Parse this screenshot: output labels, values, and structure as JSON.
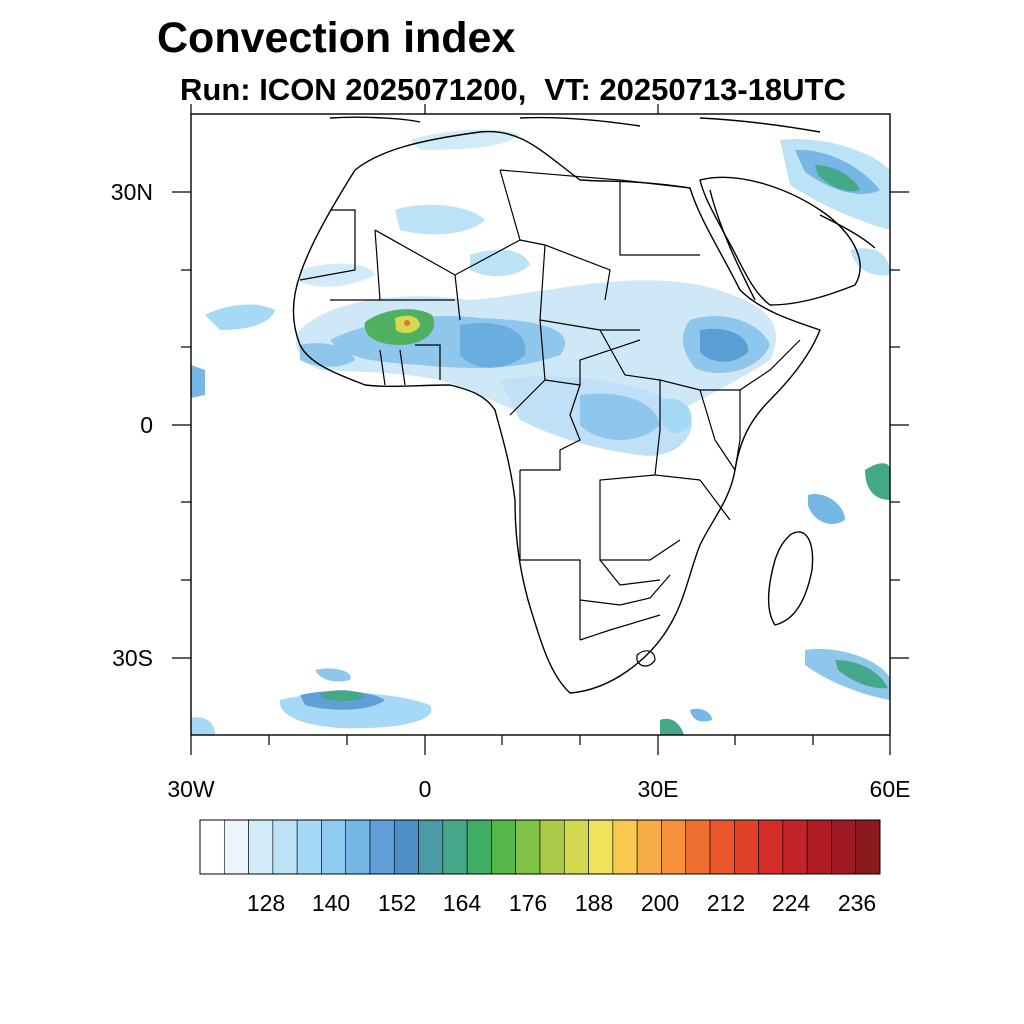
{
  "title": "Convection index",
  "subtitle": {
    "run": "Run: ICON 2025071200,",
    "valid_time": "VT: 20250713-18UTC"
  },
  "map": {
    "region": "Africa",
    "lon_range": [
      -30,
      60
    ],
    "lat_range": [
      -40,
      40
    ],
    "lat_labels": [
      "30N",
      "0",
      "30S"
    ],
    "lon_labels": [
      "30W",
      "0",
      "30E",
      "60E"
    ]
  },
  "colorbar": {
    "labels": [
      "128",
      "140",
      "152",
      "164",
      "176",
      "188",
      "200",
      "212",
      "224",
      "236"
    ],
    "colors": [
      "#ffffff",
      "#eaf5fc",
      "#d2ebf9",
      "#bce2f6",
      "#a5d9f5",
      "#8fcbf0",
      "#77b7e6",
      "#609fd8",
      "#4d8fc6",
      "#4c9aa6",
      "#46a88a",
      "#3fae64",
      "#55b848",
      "#80c147",
      "#aacb4a",
      "#d4da4f",
      "#f0e25a",
      "#f9c84f",
      "#f7ad45",
      "#f5913b",
      "#ef6f30",
      "#e9562b",
      "#e04228",
      "#d42e27",
      "#c4232a",
      "#b11c27",
      "#9e1a22",
      "#8c1a1c"
    ]
  }
}
